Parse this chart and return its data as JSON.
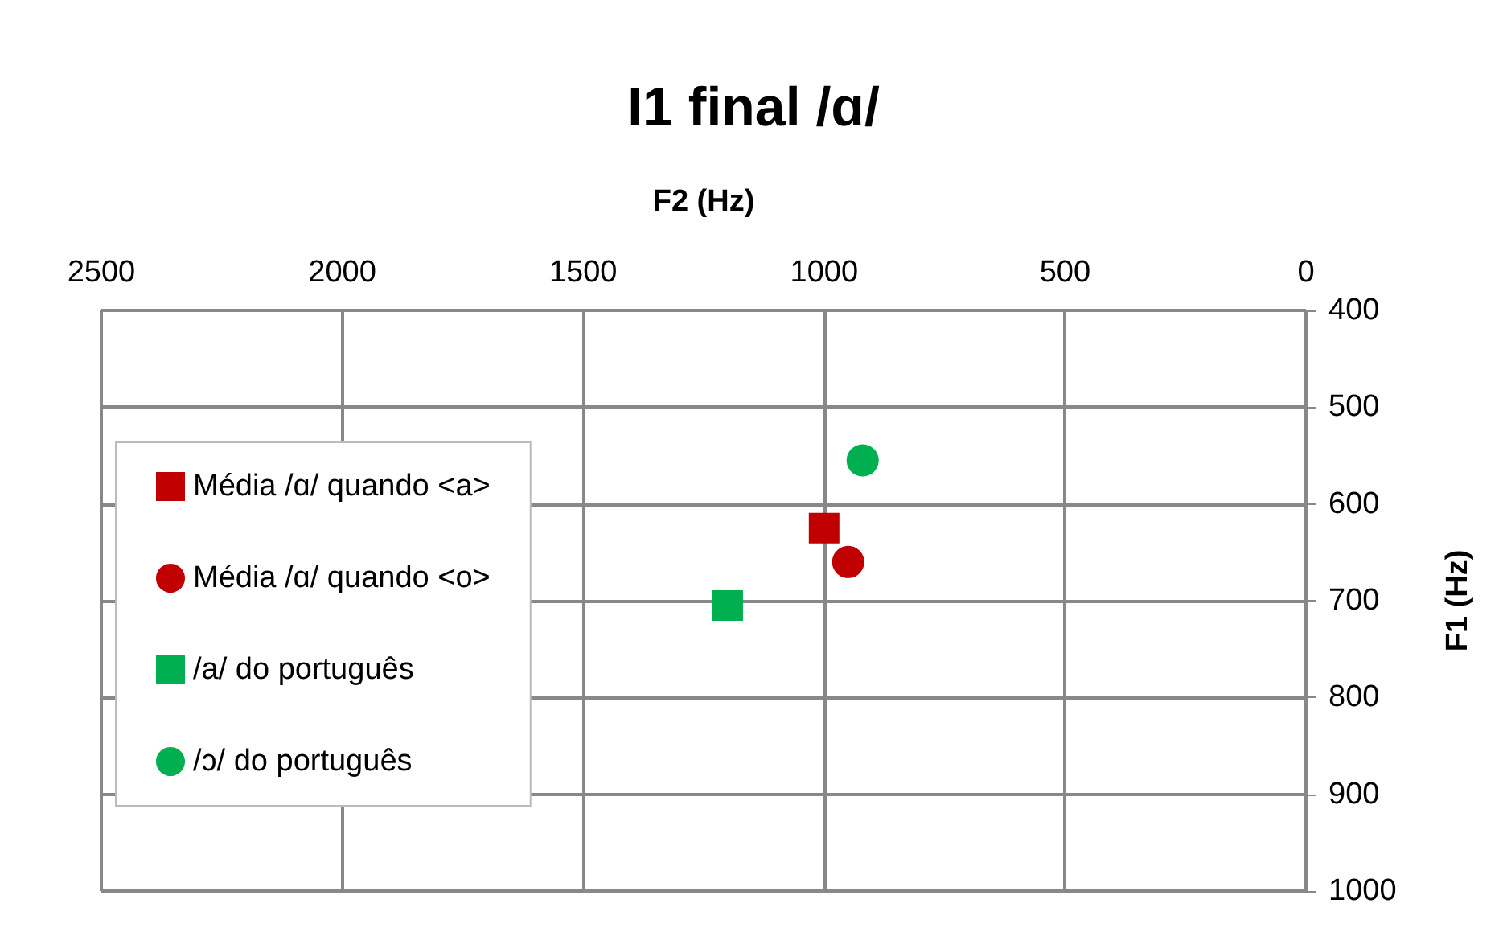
{
  "chart_data": {
    "type": "scatter",
    "title": "I1 final /ɑ/",
    "xlabel": "F2 (Hz)",
    "ylabel": "F1 (Hz)",
    "xlim": [
      2500,
      0
    ],
    "xticks": [
      2500,
      2000,
      1500,
      1000,
      500,
      0
    ],
    "ylim": [
      1000,
      400
    ],
    "yticks": [
      400,
      500,
      600,
      700,
      800,
      900,
      1000
    ],
    "grid": true,
    "legend": "left",
    "series": [
      {
        "name": "Média /ɑ/ quando <a>",
        "color": "#c00000",
        "marker": "square",
        "x": [
          1000
        ],
        "values": [
          625
        ]
      },
      {
        "name": "Média /ɑ/ quando <o>",
        "color": "#c00000",
        "marker": "circle",
        "x": [
          950
        ],
        "values": [
          660
        ]
      },
      {
        "name": "/a/ do português",
        "color": "#00b050",
        "marker": "square",
        "x": [
          1200
        ],
        "values": [
          705
        ]
      },
      {
        "name": "/ɔ/ do português",
        "color": "#00b050",
        "marker": "circle",
        "x": [
          920
        ],
        "values": [
          555
        ]
      }
    ]
  }
}
